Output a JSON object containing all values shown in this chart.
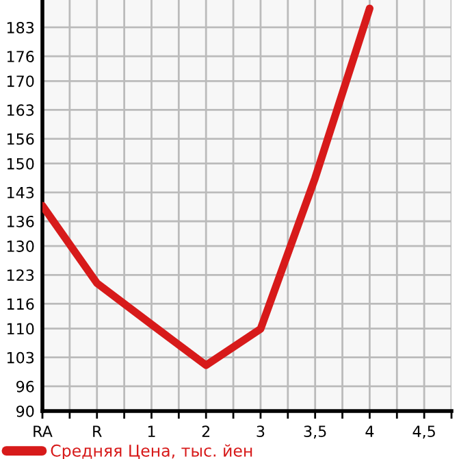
{
  "chart_data": {
    "type": "line",
    "categories": [
      "RA",
      "R",
      "1",
      "2",
      "3",
      "3,5",
      "4",
      "4,5"
    ],
    "series": [
      {
        "name": "Средняя Цена, тыс. йен",
        "color": "#d71a1a",
        "values": [
          139.8,
          121.0,
          111.0,
          101.1,
          109.9,
          146.5,
          187.6,
          null
        ]
      }
    ],
    "ylim": [
      90,
      189.64
    ],
    "yticks": [
      90,
      96,
      103,
      110,
      116,
      123,
      130,
      136,
      143,
      150,
      156,
      163,
      170,
      176,
      183
    ],
    "grid": true,
    "legend": "bottom left",
    "marker": "none",
    "line_style": "solid"
  }
}
